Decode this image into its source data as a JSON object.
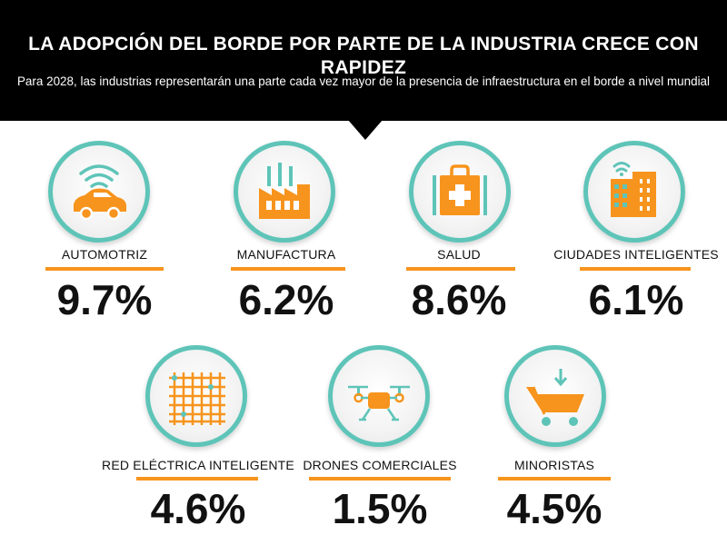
{
  "header": {
    "title": "LA ADOPCIÓN DEL BORDE POR PARTE DE LA INDUSTRIA CRECE CON RAPIDEZ",
    "subtitle": "Para 2028, las industrias representarán una parte cada vez mayor de la presencia de infraestructura en el borde a nivel mundial"
  },
  "colors": {
    "accent": "#f7941d",
    "circle_border": "#5ec4b8",
    "header_bg": "#000000"
  },
  "stats": [
    {
      "label": "AUTOMOTRIZ",
      "value": "9.7%",
      "icon": "car-wifi-icon"
    },
    {
      "label": "MANUFACTURA",
      "value": "6.2%",
      "icon": "factory-icon"
    },
    {
      "label": "SALUD",
      "value": "8.6%",
      "icon": "medical-kit-icon"
    },
    {
      "label": "CIUDADES INTELIGENTES",
      "value": "6.1%",
      "icon": "smart-building-icon"
    },
    {
      "label": "RED ELÉCTRICA INTELIGENTE",
      "value": "4.6%",
      "icon": "grid-icon"
    },
    {
      "label": "DRONES COMERCIALES",
      "value": "1.5%",
      "icon": "drone-icon"
    },
    {
      "label": "MINORISTAS",
      "value": "4.5%",
      "icon": "shopping-cart-icon"
    }
  ]
}
